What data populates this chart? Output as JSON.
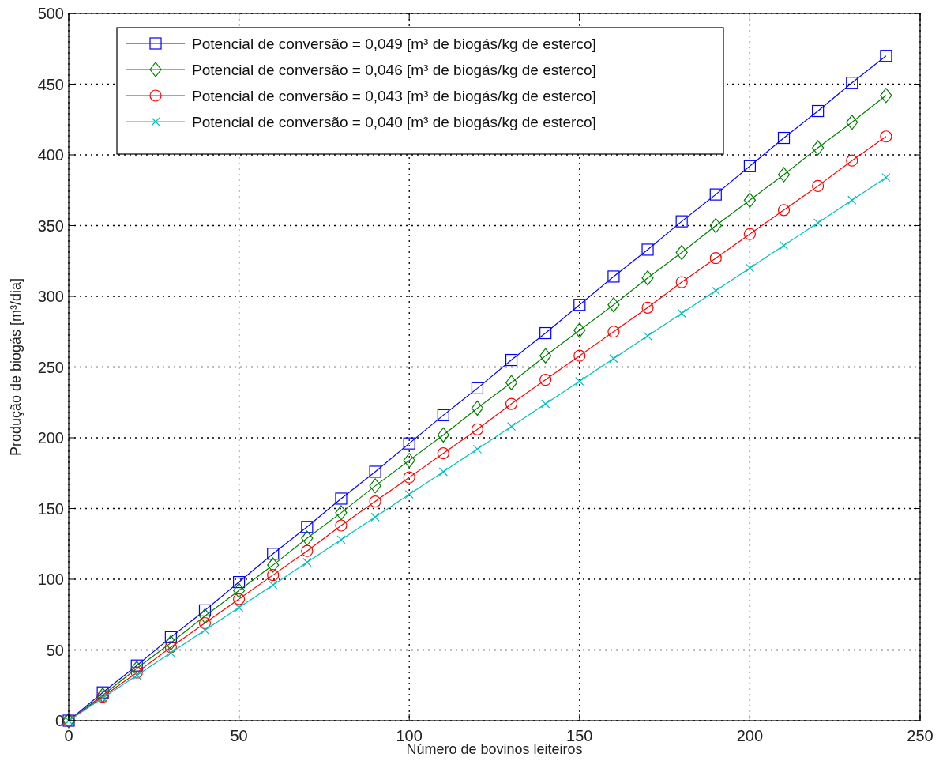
{
  "chart_data": {
    "type": "line",
    "xlabel": "Número de bovinos leiteiros",
    "ylabel": "Produção de biogás [m³/dia]",
    "x": [
      0,
      10,
      20,
      30,
      40,
      50,
      60,
      70,
      80,
      90,
      100,
      110,
      120,
      130,
      140,
      150,
      160,
      170,
      180,
      190,
      200,
      210,
      220,
      230,
      240
    ],
    "series": [
      {
        "name": "Potencial de conversão = 0,049 [m³ de biogás/kg de esterco]",
        "color": "#0000ff",
        "marker": "square",
        "values": [
          0,
          20,
          39,
          59,
          78,
          98,
          118,
          137,
          157,
          176,
          196,
          216,
          235,
          255,
          274,
          294,
          314,
          333,
          353,
          372,
          392,
          412,
          431,
          451,
          470
        ]
      },
      {
        "name": "Potencial de conversão = 0,046 [m³ de biogás/kg de esterco]",
        "color": "#008000",
        "marker": "diamond",
        "values": [
          0,
          18,
          37,
          55,
          74,
          92,
          110,
          129,
          147,
          166,
          184,
          202,
          221,
          239,
          258,
          276,
          294,
          313,
          331,
          350,
          368,
          386,
          405,
          423,
          442
        ]
      },
      {
        "name": "Potencial de conversão = 0,043 [m³ de biogás/kg de esterco]",
        "color": "#ff0000",
        "marker": "circle",
        "values": [
          0,
          17,
          34,
          52,
          69,
          86,
          103,
          120,
          138,
          155,
          172,
          189,
          206,
          224,
          241,
          258,
          275,
          292,
          310,
          327,
          344,
          361,
          378,
          396,
          413
        ]
      },
      {
        "name": "Potencial de conversão = 0,040 [m³ de biogás/kg de esterco]",
        "color": "#00bfbf",
        "marker": "cross",
        "values": [
          0,
          16,
          32,
          48,
          64,
          80,
          96,
          112,
          128,
          144,
          160,
          176,
          192,
          208,
          224,
          240,
          256,
          272,
          288,
          304,
          320,
          336,
          352,
          368,
          384
        ]
      }
    ],
    "xlim": [
      0,
      250
    ],
    "xticks": [
      0,
      50,
      100,
      150,
      200,
      250
    ],
    "ylim": [
      0,
      500
    ],
    "yticks": [
      0,
      50,
      100,
      150,
      200,
      250,
      300,
      350,
      400,
      450,
      500
    ],
    "grid": true,
    "legend": "top left",
    "line_style": "solid"
  }
}
